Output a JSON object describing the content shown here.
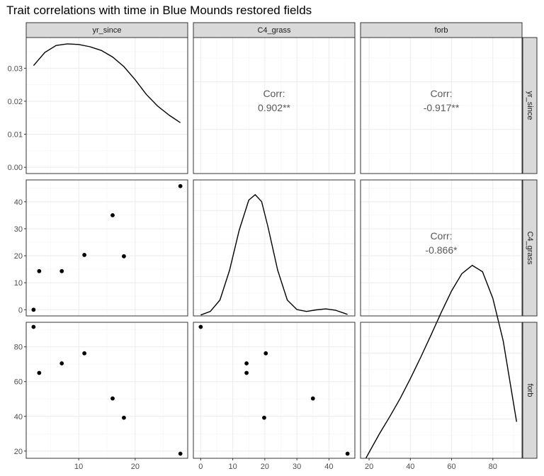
{
  "chart_data": {
    "type": "scatter",
    "title": "Trait correlations with time in Blue Mounds restored fields",
    "variables": [
      "yr_since",
      "C4_grass",
      "forb"
    ],
    "observations": {
      "yr_since": [
        2,
        3,
        7,
        11,
        16,
        18,
        28
      ],
      "C4_grass": [
        0,
        14.3,
        14.3,
        20.3,
        35,
        19.8,
        45.8
      ],
      "forb": [
        91.5,
        65,
        70.5,
        76.3,
        50.3,
        39.2,
        18.5
      ]
    },
    "correlations": [
      {
        "row": "yr_since",
        "col": "C4_grass",
        "label": "Corr:",
        "value": "0.902**"
      },
      {
        "row": "yr_since",
        "col": "forb",
        "label": "Corr:",
        "value": "-0.917**"
      },
      {
        "row": "C4_grass",
        "col": "forb",
        "label": "Corr:",
        "value": "-0.866*"
      }
    ],
    "densities": {
      "yr_since": {
        "x": [
          2,
          4,
          6,
          8,
          10,
          12,
          14,
          16,
          18,
          20,
          22,
          24,
          26,
          28
        ],
        "y": [
          0.0308,
          0.0348,
          0.0369,
          0.0374,
          0.0372,
          0.0365,
          0.0354,
          0.0334,
          0.0305,
          0.0265,
          0.022,
          0.0185,
          0.0158,
          0.0135
        ]
      },
      "C4_grass": {
        "x": [
          0,
          3,
          6,
          9,
          12,
          15,
          17,
          19,
          21,
          24,
          27,
          30,
          33,
          36,
          39,
          42,
          45.8
        ],
        "y": [
          0.3,
          1.4,
          5.0,
          14.4,
          27.0,
          36.5,
          38.2,
          36.0,
          28.0,
          14.4,
          5.0,
          2.0,
          1.4,
          1.9,
          2.2,
          1.8,
          0.5
        ]
      },
      "forb": {
        "x": [
          18.5,
          25,
          30,
          35,
          40,
          45,
          50,
          55,
          60,
          65,
          70,
          75,
          80,
          85,
          91.5
        ],
        "y": [
          0.1,
          7.7,
          13.1,
          18.8,
          25.1,
          31.8,
          38.8,
          46.0,
          52.8,
          58.2,
          60.8,
          58.8,
          50.4,
          37.0,
          11.5
        ]
      }
    },
    "axes": {
      "yr_since": {
        "ticks": [
          10,
          20
        ],
        "tick_labels": [
          "10",
          "20"
        ],
        "range": [
          0.7,
          29.3
        ]
      },
      "C4_grass": {
        "ticks": [
          0,
          10,
          20,
          30,
          40
        ],
        "tick_labels": [
          "0",
          "10",
          "20",
          "30",
          "40"
        ],
        "range": [
          -2.29,
          48.09
        ]
      },
      "forb": {
        "ticks": [
          20,
          40,
          60,
          80
        ],
        "tick_labels": [
          "20",
          "40",
          "60",
          "80"
        ],
        "range": [
          15.85,
          94.15
        ]
      },
      "diag_density_y": {
        "ticks": [
          0,
          0.01,
          0.02,
          0.03
        ],
        "tick_labels": [
          "0.00",
          "0.01",
          "0.02",
          "0.03"
        ],
        "range": [
          -0.0019,
          0.0393
        ]
      }
    },
    "strip_labels": {
      "top": [
        "yr_since",
        "C4_grass",
        "forb"
      ],
      "right": [
        "yr_since",
        "C4_grass",
        "forb"
      ]
    },
    "grid": true,
    "legend": "none"
  }
}
